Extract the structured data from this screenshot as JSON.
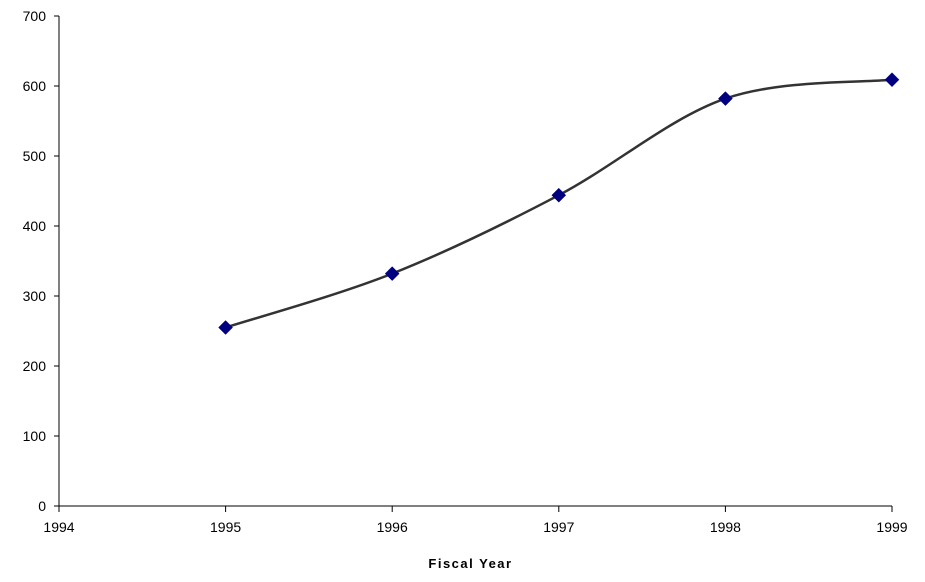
{
  "chart_data": {
    "type": "line",
    "title": "",
    "xlabel": "Fiscal Year",
    "ylabel": "",
    "xlim": [
      1994,
      1999
    ],
    "ylim": [
      0,
      700
    ],
    "x_ticks": [
      "1994",
      "1995",
      "1996",
      "1997",
      "1998",
      "1999"
    ],
    "y_ticks": [
      "0",
      "100",
      "200",
      "300",
      "400",
      "500",
      "600",
      "700"
    ],
    "grid": false,
    "legend": "none",
    "smoothed": true,
    "marker": "diamond",
    "series": [
      {
        "x": [
          1995,
          1996,
          1997,
          1998,
          1999
        ],
        "y": [
          255,
          332,
          444,
          582,
          609
        ],
        "line_color": "#333333",
        "marker_color": "#000080"
      }
    ]
  }
}
